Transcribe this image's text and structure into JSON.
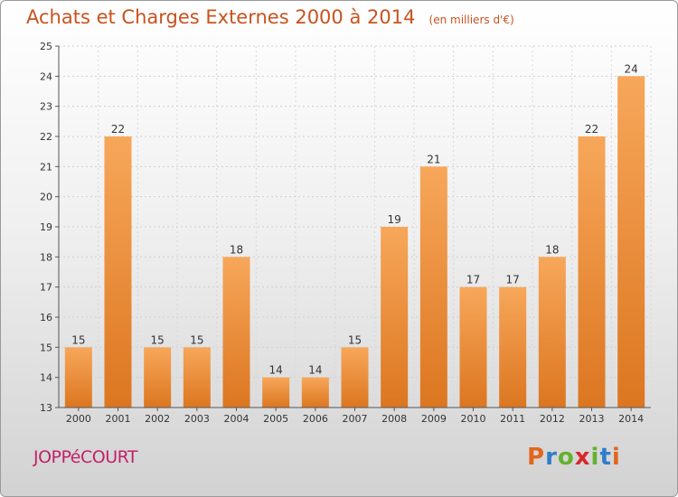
{
  "chart_data": {
    "type": "bar",
    "title": "Achats et Charges Externes 2000 à 2014",
    "unit": "(en milliers d'€)",
    "categories": [
      "2000",
      "2001",
      "2002",
      "2003",
      "2004",
      "2005",
      "2006",
      "2007",
      "2008",
      "2009",
      "2010",
      "2011",
      "2012",
      "2013",
      "2014"
    ],
    "values": [
      15,
      22,
      15,
      15,
      18,
      14,
      14,
      15,
      19,
      21,
      17,
      17,
      18,
      22,
      24
    ],
    "ylim": [
      13,
      25
    ],
    "yticks": [
      13,
      14,
      15,
      16,
      17,
      18,
      19,
      20,
      21,
      22,
      23,
      24,
      25
    ],
    "grid": true,
    "bar_color_top": "#f7a75a",
    "bar_color_bottom": "#dc7620"
  },
  "footer": {
    "commune": "JOPPéCOURT",
    "logo_letters": [
      "P",
      "r",
      "o",
      "x",
      "i",
      "t",
      "i"
    ],
    "logo_colors": [
      "#e2661e",
      "#2f7ec9",
      "#62b22e",
      "#d8262e",
      "#62b22e",
      "#2f7ec9",
      "#e2661e"
    ]
  }
}
